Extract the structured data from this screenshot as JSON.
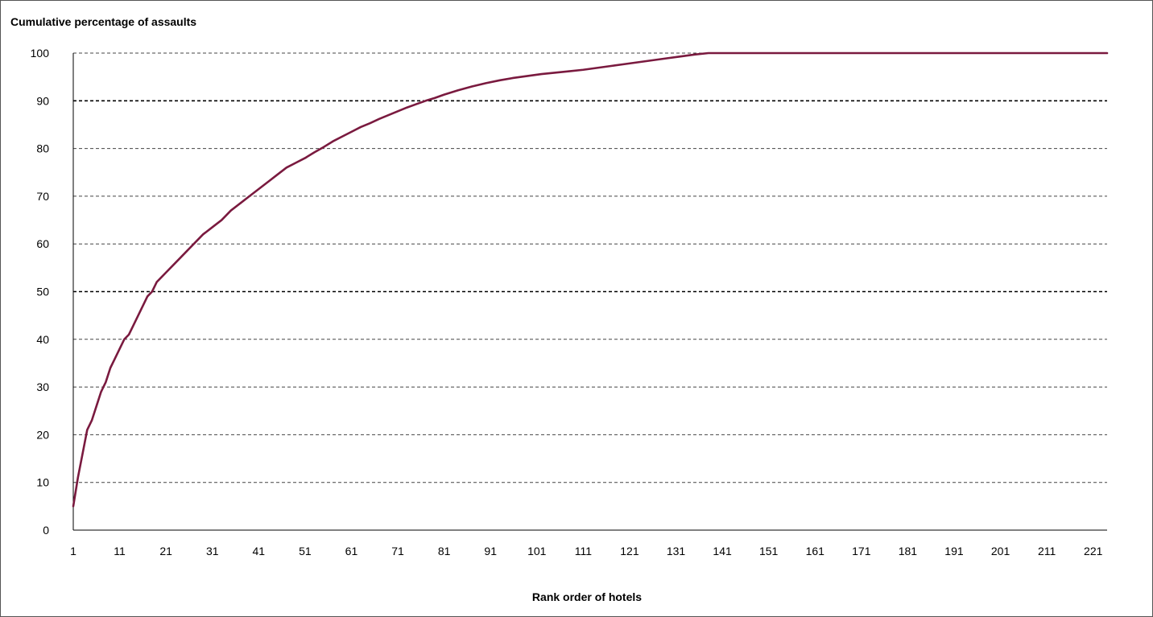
{
  "chart_data": {
    "type": "line",
    "title": "",
    "ylabel": "Cumulative percentage of assaults",
    "xlabel": "Rank order of hotels",
    "xlim": [
      1,
      224
    ],
    "ylim": [
      0,
      100
    ],
    "x_ticks": [
      "1",
      "11",
      "21",
      "31",
      "41",
      "51",
      "61",
      "71",
      "81",
      "91",
      "101",
      "111",
      "121",
      "131",
      "141",
      "151",
      "161",
      "171",
      "181",
      "191",
      "201",
      "211",
      "221"
    ],
    "y_ticks": [
      "0",
      "10",
      "20",
      "30",
      "40",
      "50",
      "60",
      "70",
      "80",
      "90",
      "100"
    ],
    "gridlines": "horizontal dashed; 50 and 90 darker",
    "grid_bold_values": [
      50,
      90
    ],
    "line_color": "#7a1a3f",
    "series": [
      {
        "x": [
          1,
          2,
          3,
          4,
          5,
          6,
          7,
          8,
          9,
          10,
          11,
          12,
          13,
          14,
          15,
          16,
          17,
          18,
          19,
          20,
          21,
          23,
          25,
          27,
          29,
          31,
          33,
          35,
          37,
          39,
          41,
          43,
          45,
          47,
          49,
          51,
          53,
          55,
          57,
          59,
          61,
          63,
          65,
          67,
          69,
          71,
          73,
          75,
          77,
          79,
          81,
          84,
          87,
          90,
          93,
          96,
          99,
          102,
          105,
          108,
          111,
          114,
          117,
          120,
          123,
          126,
          129,
          132,
          135,
          138,
          140,
          150,
          160,
          180,
          200,
          224
        ],
        "y": [
          5,
          11,
          16,
          21,
          23,
          26,
          29,
          31,
          34,
          36,
          38,
          40,
          41,
          43,
          45,
          47,
          49,
          50,
          52,
          53,
          54,
          56,
          58,
          60,
          62,
          63.5,
          65,
          67,
          68.5,
          70,
          71.5,
          73,
          74.5,
          76,
          77,
          78,
          79.2,
          80.3,
          81.5,
          82.5,
          83.5,
          84.5,
          85.3,
          86.2,
          87,
          87.8,
          88.6,
          89.3,
          90,
          90.6,
          91.3,
          92.2,
          93,
          93.7,
          94.3,
          94.8,
          95.2,
          95.6,
          95.9,
          96.2,
          96.5,
          96.9,
          97.3,
          97.7,
          98.1,
          98.5,
          98.9,
          99.3,
          99.7,
          100,
          100,
          100,
          100,
          100,
          100,
          100
        ]
      }
    ]
  }
}
